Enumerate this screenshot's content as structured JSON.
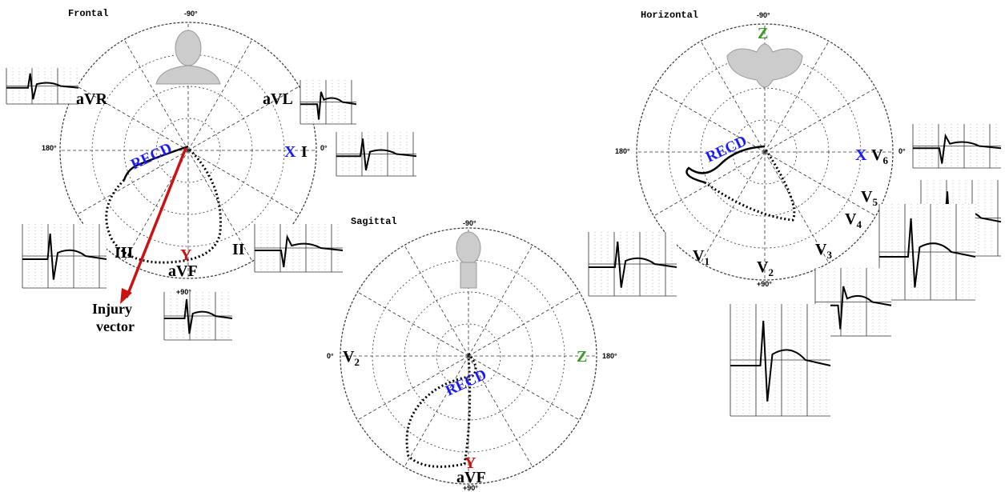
{
  "frontal": {
    "title": "Frontal",
    "top": "-90°",
    "left": "180°",
    "right": "0°",
    "bottom": "+90°",
    "leads": {
      "avr": "aVR",
      "avl": "aVL",
      "i": "I",
      "iii": "III",
      "ii": "II",
      "avf": "aVF"
    },
    "axis_x": "X",
    "axis_y": "Y",
    "loop": "RECD",
    "injury": [
      "Injury",
      "vector"
    ]
  },
  "sagittal": {
    "title": "Sagittal",
    "top": "-90°",
    "left": "0°",
    "right": "180°",
    "bottom": "+90°",
    "lead_v2": {
      "main": "V",
      "sub": "2"
    },
    "axis_z": "Z",
    "axis_y": "Y",
    "lead_avf": "aVF",
    "loop": "RECD"
  },
  "horizontal": {
    "title": "Horizontal",
    "top": "-90°",
    "left": "180°",
    "right": "0°",
    "bottom": "+90°",
    "axis_z": "Z",
    "axis_x": "X",
    "loop": "RECD",
    "leads": [
      {
        "main": "V",
        "sub": "6"
      },
      {
        "main": "V",
        "sub": "5"
      },
      {
        "main": "V",
        "sub": "4"
      },
      {
        "main": "V",
        "sub": "3"
      },
      {
        "main": "V",
        "sub": "2"
      },
      {
        "main": "V",
        "sub": "1"
      }
    ]
  }
}
